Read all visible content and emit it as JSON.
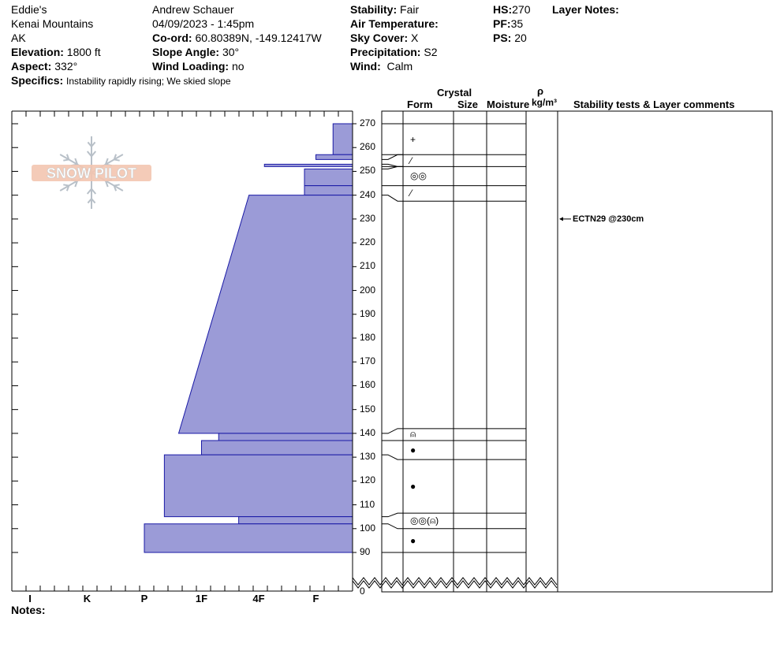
{
  "header": {
    "col1": [
      "Eddie's",
      "Kenai Mountains",
      "AK"
    ],
    "observer": "Andrew Schauer",
    "datetime": "04/09/2023 - 1:45pm",
    "elevation": {
      "label": "Elevation:",
      "value": "1800 ft"
    },
    "aspect": {
      "label": "Aspect:",
      "value": "332°"
    },
    "specifics": {
      "label": "Specifics:",
      "value": "Instability rapidly rising;  We skied slope"
    },
    "coord": {
      "label": "Co-ord:",
      "value": "60.80389N, -149.12417W"
    },
    "slope_angle": {
      "label": "Slope Angle:",
      "value": "30°"
    },
    "wind_loading": {
      "label": "Wind Loading:",
      "value": "no"
    },
    "stability": {
      "label": "Stability:",
      "value": "Fair"
    },
    "air_temperature": {
      "label": "Air Temperature:",
      "value": ""
    },
    "sky_cover": {
      "label": "Sky Cover:",
      "value": "X"
    },
    "precipitation": {
      "label": "Precipitation:",
      "value": "S2"
    },
    "wind": {
      "label": "Wind:",
      "value": "Calm"
    },
    "hs": {
      "label": "HS:",
      "value": "270"
    },
    "pf": {
      "label": "PF:",
      "value": "35"
    },
    "ps": {
      "label": "PS:",
      "value": "20"
    },
    "layer_notes": "Layer Notes:"
  },
  "columns": {
    "crystal": "Crystal",
    "form": "Form",
    "size": "Size",
    "moisture": "Moisture",
    "rho": "ρ",
    "density_unit": "kg/m³",
    "stability_tests": "Stability tests & Layer comments"
  },
  "logo_text": "SNOW PILOT",
  "notes_label": "Notes:",
  "colors": {
    "fill": "#9b9bd7",
    "stroke": "#1a1aa6",
    "logo": "#c8c8c8"
  },
  "chart_data": {
    "type": "snow-profile",
    "x_hardness_labels": [
      "I",
      "K",
      "P",
      "1F",
      "4F",
      "F"
    ],
    "y_ticks": [
      270,
      260,
      250,
      240,
      230,
      220,
      210,
      200,
      190,
      180,
      170,
      160,
      150,
      140,
      130,
      120,
      110,
      100,
      90
    ],
    "y_zero_label": "0",
    "ylim": [
      90,
      270
    ],
    "layers": [
      {
        "top": 270,
        "bottom": 257,
        "hardness_top": 5.3,
        "hardness_bottom": 5.3,
        "form": "+"
      },
      {
        "top": 257,
        "bottom": 255,
        "hardness_top": 5.0,
        "hardness_bottom": 5.0,
        "form": "⁄"
      },
      {
        "top": 253,
        "bottom": 252,
        "hardness_top": 4.1,
        "hardness_bottom": 4.1,
        "form": ""
      },
      {
        "top": 251,
        "bottom": 244,
        "hardness_top": 4.8,
        "hardness_bottom": 4.8,
        "form": "◎◎"
      },
      {
        "top": 244,
        "bottom": 240,
        "hardness_top": 4.8,
        "hardness_bottom": 4.8,
        "form": "⁄"
      },
      {
        "top": 240,
        "bottom": 140,
        "hardness_top": 3.83,
        "hardness_bottom": 2.6,
        "form": ""
      },
      {
        "top": 140,
        "bottom": 137,
        "hardness_top": 3.3,
        "hardness_bottom": 3.3,
        "form": "⍝"
      },
      {
        "top": 137,
        "bottom": 131,
        "hardness_top": 3.0,
        "hardness_bottom": 3.0,
        "form": "●"
      },
      {
        "top": 131,
        "bottom": 105,
        "hardness_top": 2.35,
        "hardness_bottom": 2.35,
        "form": "●"
      },
      {
        "top": 105,
        "bottom": 102,
        "hardness_top": 3.65,
        "hardness_bottom": 3.65,
        "form": "◎◎(⍝)"
      },
      {
        "top": 102,
        "bottom": 90,
        "hardness_top": 2.0,
        "hardness_bottom": 2.0,
        "form": "●"
      }
    ],
    "table_rows": [
      {
        "top": 270,
        "bottom": 257,
        "form": "+"
      },
      {
        "top": 257,
        "bottom": 252,
        "form": "⁄"
      },
      {
        "top": 252,
        "bottom": 244,
        "form": "◎◎"
      },
      {
        "top": 244,
        "bottom": 237.5,
        "form": "⁄"
      },
      {
        "top": 237.5,
        "bottom": 142,
        "form": ""
      },
      {
        "top": 142,
        "bottom": 137,
        "form": "⍝"
      },
      {
        "top": 137,
        "bottom": 129,
        "form": "●"
      },
      {
        "top": 129,
        "bottom": 106.5,
        "form": "●"
      },
      {
        "top": 106.5,
        "bottom": 100,
        "form": "◎◎(⍝)"
      },
      {
        "top": 100,
        "bottom": 90,
        "form": "●"
      }
    ],
    "stability_tests": [
      {
        "depth": 230,
        "text": "ECTN29 @230cm"
      }
    ]
  }
}
